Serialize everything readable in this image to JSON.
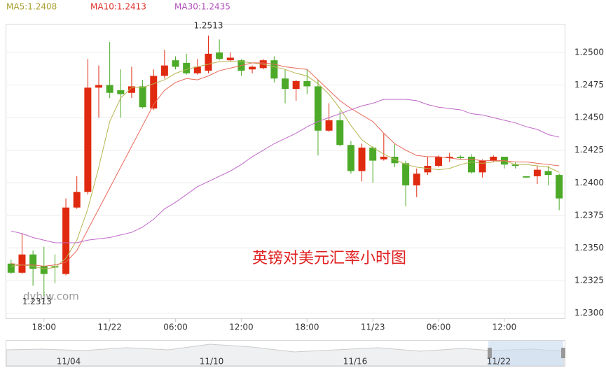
{
  "chart_data": {
    "type": "candlestick",
    "legend": [
      {
        "text": "MA5:1.2408",
        "color": "#a8a030"
      },
      {
        "text": "MA10:1.2413",
        "color": "#e0302a"
      },
      {
        "text": "MA30:1.2435",
        "color": "#b050b8"
      }
    ],
    "annotation": "英镑对美元汇率小时图",
    "watermark": "dyhjw.com",
    "max_label": 1.2513,
    "min_label": 1.2313,
    "up_color": "#e02a10",
    "down_color": "#4caa28",
    "categories": [
      null,
      null,
      null,
      "18:00",
      null,
      null,
      null,
      null,
      null,
      "11/22",
      null,
      null,
      null,
      null,
      null,
      "06:00",
      null,
      null,
      null,
      null,
      null,
      "12:00",
      null,
      null,
      null,
      null,
      null,
      "18:00",
      null,
      null,
      null,
      null,
      null,
      "11/23",
      null,
      null,
      null,
      null,
      null,
      "06:00",
      null,
      null,
      null,
      null,
      null,
      "12:00",
      null,
      null,
      null,
      null,
      null
    ],
    "open": [
      1.2338,
      1.2331,
      1.2345,
      1.2336,
      1.2336,
      1.233,
      1.2381,
      1.2393,
      1.2473,
      1.2475,
      1.2471,
      1.2469,
      1.2474,
      1.2457,
      1.2482,
      1.2494,
      1.2492,
      1.2484,
      1.2486,
      1.25,
      1.2494,
      1.2494,
      1.2487,
      1.2488,
      1.2494,
      1.248,
      1.2472,
      1.2478,
      1.2474,
      1.244,
      1.2448,
      1.2429,
      1.2409,
      1.2427,
      1.2418,
      1.242,
      1.2415,
      1.2398,
      1.2408,
      1.2413,
      1.2419,
      1.242,
      1.242,
      1.2408,
      1.2417,
      1.242,
      1.2414,
      1.2405,
      1.2405,
      1.2409,
      1.2406
    ],
    "high": [
      1.2341,
      1.2361,
      1.2348,
      1.2351,
      1.2345,
      1.2388,
      1.2405,
      1.2495,
      1.249,
      1.2508,
      1.2487,
      1.2489,
      1.2479,
      1.2487,
      1.2502,
      1.2497,
      1.2499,
      1.2495,
      1.2513,
      1.251,
      1.25,
      1.2495,
      1.249,
      1.2495,
      1.2497,
      1.2487,
      1.2479,
      1.2487,
      1.2479,
      1.2461,
      1.2455,
      1.2432,
      1.243,
      1.2428,
      1.2438,
      1.243,
      1.2417,
      1.2411,
      1.242,
      1.2421,
      1.2423,
      1.2421,
      1.2422,
      1.2418,
      1.2421,
      1.242,
      1.2416,
      1.2405,
      1.2413,
      1.2413,
      1.2407
    ],
    "low": [
      1.233,
      1.233,
      1.2321,
      1.2313,
      1.2323,
      1.2329,
      1.238,
      1.2391,
      1.245,
      1.2465,
      1.245,
      1.2465,
      1.2457,
      1.2456,
      1.248,
      1.2487,
      1.2483,
      1.2483,
      1.2484,
      1.2494,
      1.2493,
      1.2482,
      1.2484,
      1.2487,
      1.2477,
      1.2461,
      1.2463,
      1.2468,
      1.2421,
      1.2439,
      1.2428,
      1.2407,
      1.2401,
      1.24,
      1.2417,
      1.2412,
      1.2382,
      1.2389,
      1.2406,
      1.2412,
      1.2416,
      1.2418,
      1.2407,
      1.2404,
      1.2416,
      1.2411,
      1.2411,
      1.2404,
      1.2399,
      1.2398,
      1.2379
    ],
    "close": [
      1.2331,
      1.2345,
      1.2334,
      1.233,
      1.2335,
      1.2381,
      1.2393,
      1.2473,
      1.2475,
      1.2469,
      1.2468,
      1.2474,
      1.2458,
      1.2482,
      1.249,
      1.2489,
      1.2484,
      1.2489,
      1.2499,
      1.2495,
      1.2496,
      1.2486,
      1.2489,
      1.2494,
      1.248,
      1.2472,
      1.2478,
      1.2474,
      1.244,
      1.2448,
      1.2429,
      1.2409,
      1.2427,
      1.2417,
      1.242,
      1.2415,
      1.2398,
      1.2407,
      1.2413,
      1.242,
      1.242,
      1.2419,
      1.2408,
      1.2417,
      1.242,
      1.2414,
      1.2413,
      1.2404,
      1.241,
      1.2406,
      1.2388
    ],
    "series": [
      {
        "name": "MA5",
        "color": "#b8b450",
        "values": [
          1.2336,
          1.2337,
          1.2336,
          1.2334,
          1.2335,
          1.2342,
          1.2356,
          1.238,
          1.2412,
          1.2447,
          1.2465,
          1.2473,
          1.2473,
          1.2476,
          1.2479,
          1.2484,
          1.2487,
          1.2489,
          1.2491,
          1.2493,
          1.2493,
          1.2493,
          1.2492,
          1.2491,
          1.2489,
          1.2487,
          1.2484,
          1.2482,
          1.2476,
          1.2468,
          1.2457,
          1.2444,
          1.2433,
          1.2427,
          1.2422,
          1.2418,
          1.2414,
          1.2412,
          1.2411,
          1.241,
          1.2411,
          1.2414,
          1.2416,
          1.2415,
          1.2416,
          1.2417,
          1.2414,
          1.2414,
          1.2413,
          1.2412,
          1.2408
        ]
      },
      {
        "name": "MA10",
        "color": "#e86858",
        "values": [
          1.2338,
          1.2337,
          1.2337,
          1.2336,
          1.2337,
          1.2339,
          1.2348,
          1.2364,
          1.238,
          1.2396,
          1.2412,
          1.2428,
          1.2444,
          1.246,
          1.2471,
          1.2477,
          1.248,
          1.2479,
          1.2482,
          1.2486,
          1.2488,
          1.249,
          1.2492,
          1.2492,
          1.2491,
          1.2489,
          1.2488,
          1.2487,
          1.2479,
          1.2471,
          1.2463,
          1.2457,
          1.2452,
          1.2447,
          1.2438,
          1.243,
          1.2425,
          1.2421,
          1.242,
          1.242,
          1.2419,
          1.2418,
          1.2418,
          1.2417,
          1.2417,
          1.2417,
          1.2416,
          1.2416,
          1.2415,
          1.2414,
          1.2413
        ]
      },
      {
        "name": "MA30",
        "color": "#c068c8",
        "values": [
          1.2363,
          1.2361,
          1.2358,
          1.2356,
          1.2354,
          1.2354,
          1.2354,
          1.2356,
          1.2357,
          1.2358,
          1.236,
          1.2362,
          1.2366,
          1.2372,
          1.238,
          1.2385,
          1.2391,
          1.2397,
          1.2401,
          1.2405,
          1.2409,
          1.2414,
          1.242,
          1.2425,
          1.243,
          1.2434,
          1.2438,
          1.2443,
          1.2447,
          1.245,
          1.2453,
          1.2456,
          1.2459,
          1.2461,
          1.2464,
          1.2464,
          1.2464,
          1.2463,
          1.246,
          1.2458,
          1.2457,
          1.2456,
          1.2453,
          1.2452,
          1.245,
          1.2448,
          1.2446,
          1.2443,
          1.2441,
          1.2437,
          1.2435
        ]
      }
    ],
    "ylim": [
      1.2296,
      1.2522
    ],
    "yticks": [
      {
        "value": 1.23,
        "label": "1.2300"
      },
      {
        "value": 1.2325,
        "label": "1.2325"
      },
      {
        "value": 1.235,
        "label": "1.2350"
      },
      {
        "value": 1.2375,
        "label": "1.2375"
      },
      {
        "value": 1.24,
        "label": "1.2400"
      },
      {
        "value": 1.2425,
        "label": "1.2425"
      },
      {
        "value": 1.245,
        "label": "1.2450"
      },
      {
        "value": 1.2475,
        "label": "1.2475"
      },
      {
        "value": 1.25,
        "label": "1.2500"
      }
    ],
    "grid": true,
    "navigator_labels": [
      "11/04",
      "11/10",
      "11/16",
      "11/22"
    ]
  }
}
